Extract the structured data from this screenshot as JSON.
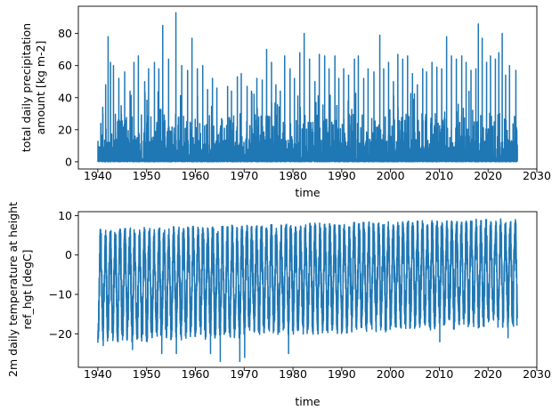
{
  "chart_data": [
    {
      "type": "line",
      "ylabel_lines": [
        "total daily precipitation",
        "amount [kg m-2]"
      ],
      "xlabel": "time",
      "x_ticks": [
        1940,
        1950,
        1960,
        1970,
        1980,
        1990,
        2000,
        2010,
        2020,
        2030
      ],
      "y_ticks": [
        0,
        20,
        40,
        60,
        80
      ],
      "xlim": [
        1936,
        2030
      ],
      "ylim": [
        -4.5,
        97
      ],
      "series": [
        {
          "color": "#1f77b4",
          "x_range": [
            1940.0,
            2026.0
          ],
          "baseline": 0,
          "peaks": [
            {
              "x": 1941.0,
              "y": 34
            },
            {
              "x": 1941.6,
              "y": 48
            },
            {
              "x": 1942.1,
              "y": 78
            },
            {
              "x": 1942.6,
              "y": 62
            },
            {
              "x": 1943.2,
              "y": 60
            },
            {
              "x": 1944.3,
              "y": 52
            },
            {
              "x": 1945.5,
              "y": 56
            },
            {
              "x": 1946.6,
              "y": 44
            },
            {
              "x": 1947.4,
              "y": 62
            },
            {
              "x": 1948.3,
              "y": 66
            },
            {
              "x": 1949.6,
              "y": 50
            },
            {
              "x": 1950.4,
              "y": 58
            },
            {
              "x": 1951.6,
              "y": 62
            },
            {
              "x": 1952.5,
              "y": 58
            },
            {
              "x": 1953.3,
              "y": 85
            },
            {
              "x": 1954.5,
              "y": 64
            },
            {
              "x": 1956.0,
              "y": 93
            },
            {
              "x": 1957.2,
              "y": 60
            },
            {
              "x": 1958.4,
              "y": 57
            },
            {
              "x": 1959.3,
              "y": 77
            },
            {
              "x": 1960.4,
              "y": 58
            },
            {
              "x": 1961.5,
              "y": 60
            },
            {
              "x": 1962.5,
              "y": 45
            },
            {
              "x": 1963.5,
              "y": 52
            },
            {
              "x": 1964.4,
              "y": 46
            },
            {
              "x": 1965.5,
              "y": 26
            },
            {
              "x": 1966.6,
              "y": 47
            },
            {
              "x": 1967.4,
              "y": 44
            },
            {
              "x": 1968.6,
              "y": 53
            },
            {
              "x": 1969.4,
              "y": 55
            },
            {
              "x": 1970.6,
              "y": 47
            },
            {
              "x": 1971.5,
              "y": 44
            },
            {
              "x": 1972.6,
              "y": 52
            },
            {
              "x": 1973.7,
              "y": 51
            },
            {
              "x": 1974.6,
              "y": 70
            },
            {
              "x": 1975.6,
              "y": 62
            },
            {
              "x": 1976.5,
              "y": 48
            },
            {
              "x": 1977.4,
              "y": 44
            },
            {
              "x": 1978.3,
              "y": 66
            },
            {
              "x": 1979.4,
              "y": 58
            },
            {
              "x": 1980.3,
              "y": 52
            },
            {
              "x": 1981.4,
              "y": 68
            },
            {
              "x": 1982.3,
              "y": 80
            },
            {
              "x": 1983.4,
              "y": 64
            },
            {
              "x": 1984.5,
              "y": 50
            },
            {
              "x": 1985.4,
              "y": 67
            },
            {
              "x": 1986.5,
              "y": 66
            },
            {
              "x": 1987.4,
              "y": 58
            },
            {
              "x": 1988.6,
              "y": 66
            },
            {
              "x": 1989.4,
              "y": 52
            },
            {
              "x": 1990.4,
              "y": 58
            },
            {
              "x": 1991.4,
              "y": 54
            },
            {
              "x": 1992.6,
              "y": 64
            },
            {
              "x": 1993.4,
              "y": 66
            },
            {
              "x": 1994.5,
              "y": 52
            },
            {
              "x": 1995.4,
              "y": 58
            },
            {
              "x": 1996.6,
              "y": 56
            },
            {
              "x": 1997.8,
              "y": 79
            },
            {
              "x": 1998.6,
              "y": 58
            },
            {
              "x": 1999.6,
              "y": 62
            },
            {
              "x": 2000.6,
              "y": 50
            },
            {
              "x": 2001.5,
              "y": 67
            },
            {
              "x": 2002.5,
              "y": 64
            },
            {
              "x": 2003.5,
              "y": 66
            },
            {
              "x": 2004.5,
              "y": 55
            },
            {
              "x": 2005.5,
              "y": 48
            },
            {
              "x": 2006.6,
              "y": 58
            },
            {
              "x": 2007.4,
              "y": 56
            },
            {
              "x": 2008.5,
              "y": 62
            },
            {
              "x": 2009.5,
              "y": 59
            },
            {
              "x": 2010.5,
              "y": 58
            },
            {
              "x": 2011.5,
              "y": 78
            },
            {
              "x": 2012.5,
              "y": 66
            },
            {
              "x": 2013.5,
              "y": 64
            },
            {
              "x": 2014.6,
              "y": 66
            },
            {
              "x": 2015.5,
              "y": 62
            },
            {
              "x": 2016.5,
              "y": 57
            },
            {
              "x": 2017.5,
              "y": 58
            },
            {
              "x": 2018.0,
              "y": 86
            },
            {
              "x": 2018.8,
              "y": 77
            },
            {
              "x": 2019.7,
              "y": 62
            },
            {
              "x": 2020.5,
              "y": 66
            },
            {
              "x": 2021.5,
              "y": 64
            },
            {
              "x": 2022.2,
              "y": 68
            },
            {
              "x": 2022.9,
              "y": 80
            },
            {
              "x": 2023.6,
              "y": 54
            },
            {
              "x": 2024.4,
              "y": 60
            },
            {
              "x": 2025.7,
              "y": 57
            }
          ]
        }
      ]
    },
    {
      "type": "line",
      "ylabel_lines": [
        "2m daily temperature at height",
        "ref_hgt [degC]"
      ],
      "xlabel": "time",
      "x_ticks": [
        1940,
        1950,
        1960,
        1970,
        1980,
        1990,
        2000,
        2010,
        2020,
        2030
      ],
      "y_ticks": [
        -20,
        -10,
        0,
        10
      ],
      "xlim": [
        1936,
        2030
      ],
      "ylim": [
        -28.5,
        11
      ],
      "series": [
        {
          "color": "#1f77b4",
          "x_range": [
            1940.0,
            2026.0
          ],
          "annual_cycle": {
            "max_mean": 4.5,
            "min_mean": -19.5,
            "max_trend_per_decade": 0.3,
            "min_trend_per_decade": 0.5
          },
          "extremes": [
            {
              "x": 1941.1,
              "y": -23
            },
            {
              "x": 1947.1,
              "y": -24
            },
            {
              "x": 1953.1,
              "y": -25
            },
            {
              "x": 1956.1,
              "y": -25
            },
            {
              "x": 1963.1,
              "y": -25
            },
            {
              "x": 1965.1,
              "y": -27
            },
            {
              "x": 1969.1,
              "y": -27
            },
            {
              "x": 1970.1,
              "y": -26
            },
            {
              "x": 1979.1,
              "y": -25
            },
            {
              "x": 2010.1,
              "y": -22
            },
            {
              "x": 2024.1,
              "y": -21
            },
            {
              "x": 2025.6,
              "y": 9
            },
            {
              "x": 2018.6,
              "y": 8
            },
            {
              "x": 2002.6,
              "y": 8
            },
            {
              "x": 1980.6,
              "y": 7
            },
            {
              "x": 1977.6,
              "y": 7
            },
            {
              "x": 2012.6,
              "y": 8
            }
          ]
        }
      ]
    }
  ]
}
